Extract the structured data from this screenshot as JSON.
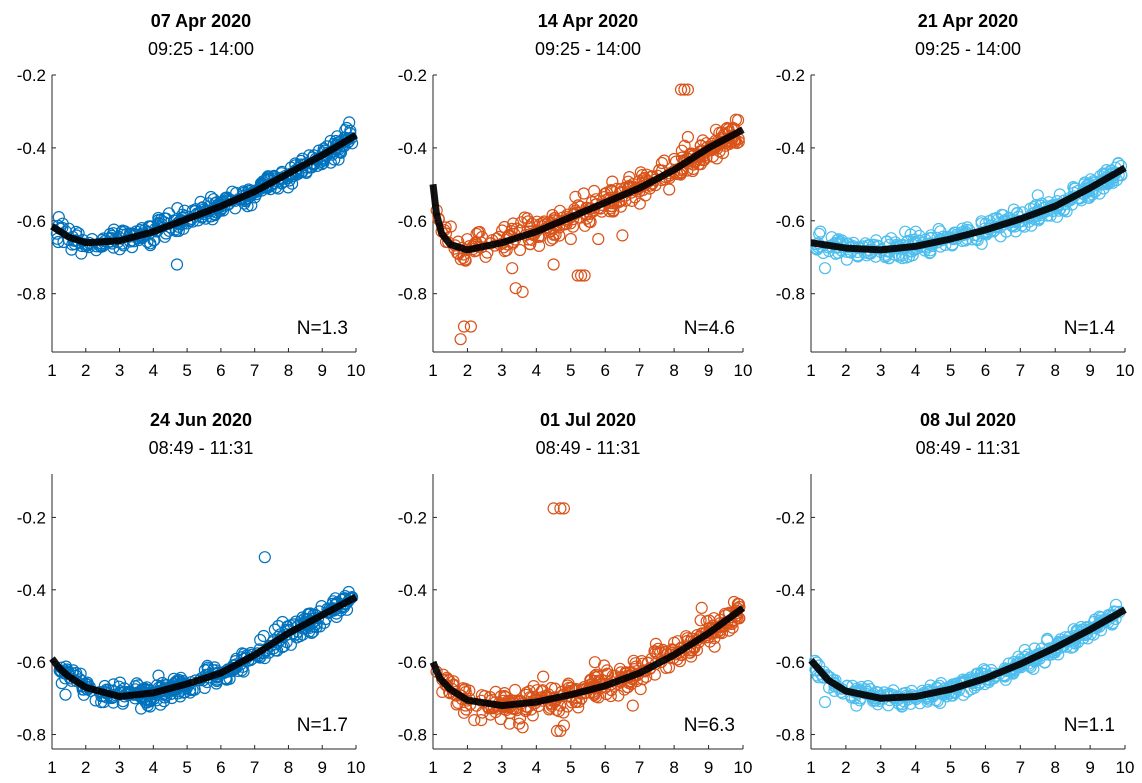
{
  "colors": {
    "blue": "#0072bd",
    "orange": "#d95319",
    "lightblue": "#4dbeee",
    "fit": "#000000"
  },
  "chart_data": [
    {
      "type": "scatter",
      "title": "07 Apr 2020",
      "subtitle": "09:25 - 14:00",
      "annotation": "N=1.3",
      "marker_color": "blue",
      "xlim": [
        1,
        10
      ],
      "ylim": [
        -0.96,
        -0.2
      ],
      "xticks": [
        "1",
        "2",
        "3",
        "4",
        "5",
        "6",
        "7",
        "8",
        "9",
        "10"
      ],
      "yticks": [
        "-0.2",
        "-0.4",
        "-0.6",
        "-0.8"
      ],
      "fit": {
        "x": [
          1,
          1.5,
          2,
          3,
          4,
          5,
          6,
          7,
          8,
          9,
          10
        ],
        "y": [
          -0.615,
          -0.645,
          -0.66,
          -0.655,
          -0.63,
          -0.595,
          -0.56,
          -0.52,
          -0.47,
          -0.42,
          -0.365
        ]
      },
      "noise": 0.015,
      "outliers": [
        [
          4.7,
          -0.72
        ],
        [
          1.2,
          -0.59
        ],
        [
          2.0,
          -0.67
        ],
        [
          9.8,
          -0.33
        ]
      ]
    },
    {
      "type": "scatter",
      "title": "14 Apr 2020",
      "subtitle": "09:25 - 14:00",
      "annotation": "N=4.6",
      "marker_color": "orange",
      "xlim": [
        1,
        10
      ],
      "ylim": [
        -0.96,
        -0.2
      ],
      "xticks": [
        "1",
        "2",
        "3",
        "4",
        "5",
        "6",
        "7",
        "8",
        "9",
        "10"
      ],
      "yticks": [
        "-0.2",
        "-0.4",
        "-0.6",
        "-0.8"
      ],
      "fit": {
        "x": [
          1,
          1.1,
          1.25,
          1.5,
          2,
          3,
          4,
          5,
          6,
          7,
          8,
          9,
          10
        ],
        "y": [
          -0.5,
          -0.58,
          -0.635,
          -0.665,
          -0.68,
          -0.66,
          -0.63,
          -0.59,
          -0.55,
          -0.51,
          -0.46,
          -0.4,
          -0.35
        ]
      },
      "noise": 0.02,
      "outliers": [
        [
          1.8,
          -0.925
        ],
        [
          1.9,
          -0.89
        ],
        [
          2.1,
          -0.89
        ],
        [
          3.4,
          -0.785
        ],
        [
          3.6,
          -0.795
        ],
        [
          3.3,
          -0.73
        ],
        [
          4.5,
          -0.72
        ],
        [
          5.2,
          -0.75
        ],
        [
          5.3,
          -0.75
        ],
        [
          5.4,
          -0.75
        ],
        [
          5.8,
          -0.65
        ],
        [
          6.5,
          -0.64
        ],
        [
          8.2,
          -0.24
        ],
        [
          8.3,
          -0.24
        ],
        [
          8.4,
          -0.24
        ],
        [
          8.4,
          -0.37
        ],
        [
          4.1,
          -0.61
        ],
        [
          5.0,
          -0.65
        ]
      ]
    },
    {
      "type": "scatter",
      "title": "21 Apr 2020",
      "subtitle": "09:25 - 14:00",
      "annotation": "N=1.4",
      "marker_color": "lightblue",
      "xlim": [
        1,
        10
      ],
      "ylim": [
        -0.96,
        -0.2
      ],
      "xticks": [
        "1",
        "2",
        "3",
        "4",
        "5",
        "6",
        "7",
        "8",
        "9",
        "10"
      ],
      "yticks": [
        "-0.2",
        "-0.4",
        "-0.6",
        "-0.8"
      ],
      "fit": {
        "x": [
          1,
          2,
          3,
          4,
          5,
          6,
          7,
          8,
          9,
          10
        ],
        "y": [
          -0.66,
          -0.675,
          -0.68,
          -0.67,
          -0.65,
          -0.625,
          -0.595,
          -0.56,
          -0.51,
          -0.455
        ]
      },
      "noise": 0.015,
      "outliers": [
        [
          1.4,
          -0.73
        ],
        [
          7.5,
          -0.53
        ],
        [
          3.7,
          -0.63
        ],
        [
          4.0,
          -0.63
        ],
        [
          9.5,
          -0.5
        ]
      ]
    },
    {
      "type": "scatter",
      "title": "24 Jun 2020",
      "subtitle": "08:49 - 11:31",
      "annotation": "N=1.7",
      "marker_color": "blue",
      "xlim": [
        1,
        10
      ],
      "ylim": [
        -0.84,
        -0.08
      ],
      "xticks": [
        "1",
        "2",
        "3",
        "4",
        "5",
        "6",
        "7",
        "8",
        "9",
        "10"
      ],
      "yticks": [
        "-0.2",
        "-0.4",
        "-0.6",
        "-0.8"
      ],
      "fit": {
        "x": [
          1,
          1.2,
          1.5,
          2,
          3,
          4,
          5,
          6,
          7,
          8,
          9,
          10
        ],
        "y": [
          -0.59,
          -0.615,
          -0.64,
          -0.67,
          -0.695,
          -0.685,
          -0.66,
          -0.63,
          -0.58,
          -0.52,
          -0.47,
          -0.42
        ]
      },
      "noise": 0.015,
      "outliers": [
        [
          7.3,
          -0.31
        ],
        [
          1.4,
          -0.69
        ],
        [
          7.6,
          -0.51
        ],
        [
          7.7,
          -0.5
        ]
      ]
    },
    {
      "type": "scatter",
      "title": "01 Jul 2020",
      "subtitle": "08:49 - 11:31",
      "annotation": "N=6.3",
      "marker_color": "orange",
      "xlim": [
        1,
        10
      ],
      "ylim": [
        -0.84,
        -0.08
      ],
      "xticks": [
        "1",
        "2",
        "3",
        "4",
        "5",
        "6",
        "7",
        "8",
        "9",
        "10"
      ],
      "yticks": [
        "-0.2",
        "-0.4",
        "-0.6",
        "-0.8"
      ],
      "fit": {
        "x": [
          1,
          1.2,
          1.5,
          2,
          3,
          4,
          5,
          6,
          7,
          8,
          9,
          10
        ],
        "y": [
          -0.6,
          -0.645,
          -0.675,
          -0.705,
          -0.72,
          -0.71,
          -0.69,
          -0.665,
          -0.63,
          -0.58,
          -0.52,
          -0.45
        ]
      },
      "noise": 0.02,
      "outliers": [
        [
          4.5,
          -0.175
        ],
        [
          4.7,
          -0.175
        ],
        [
          4.8,
          -0.175
        ],
        [
          4.6,
          -0.79
        ],
        [
          4.7,
          -0.79
        ],
        [
          4.8,
          -0.775
        ],
        [
          3.5,
          -0.77
        ],
        [
          3.6,
          -0.78
        ],
        [
          2.2,
          -0.76
        ],
        [
          2.4,
          -0.76
        ],
        [
          1.9,
          -0.74
        ],
        [
          6.8,
          -0.72
        ],
        [
          8.8,
          -0.45
        ],
        [
          5.7,
          -0.6
        ],
        [
          8.2,
          -0.56
        ],
        [
          4.2,
          -0.64
        ]
      ]
    },
    {
      "type": "scatter",
      "title": "08 Jul 2020",
      "subtitle": "08:49 - 11:31",
      "annotation": "N=1.1",
      "marker_color": "lightblue",
      "xlim": [
        1,
        10
      ],
      "ylim": [
        -0.84,
        -0.08
      ],
      "xticks": [
        "1",
        "2",
        "3",
        "4",
        "5",
        "6",
        "7",
        "8",
        "9",
        "10"
      ],
      "yticks": [
        "-0.2",
        "-0.4",
        "-0.6",
        "-0.8"
      ],
      "fit": {
        "x": [
          1,
          1.5,
          2,
          3,
          4,
          5,
          6,
          7,
          8,
          9,
          10
        ],
        "y": [
          -0.595,
          -0.65,
          -0.68,
          -0.7,
          -0.695,
          -0.675,
          -0.645,
          -0.605,
          -0.56,
          -0.51,
          -0.455
        ]
      },
      "noise": 0.012,
      "outliers": [
        [
          1.4,
          -0.71
        ],
        [
          2.3,
          -0.72
        ],
        [
          7.7,
          -0.6
        ]
      ]
    }
  ]
}
